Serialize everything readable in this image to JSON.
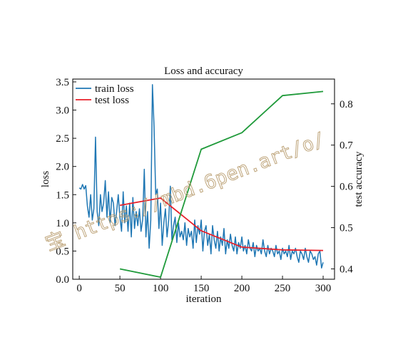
{
  "watermark": "宝 https://mbd.6pen.art/o/",
  "chart_data": {
    "type": "line",
    "title": "Loss and accuracy",
    "xlabel": "iteration",
    "ylabel": "loss",
    "y2label": "test accuracy",
    "xlim": [
      -8,
      314
    ],
    "ylim": [
      0.0,
      3.55
    ],
    "y2lim": [
      0.375,
      0.86
    ],
    "xticks": [
      0,
      50,
      100,
      150,
      200,
      250,
      300
    ],
    "yticks": [
      0.0,
      0.5,
      1.0,
      1.5,
      2.0,
      2.5,
      3.0,
      3.5
    ],
    "yticklabels": [
      "0.0",
      "0.5",
      "1.0",
      "1.5",
      "2.0",
      "2.5",
      "3.0",
      "3.5"
    ],
    "y2ticks": [
      0.4,
      0.5,
      0.6,
      0.7,
      0.8
    ],
    "y2ticklabels": [
      "0.4",
      "0.5",
      "0.6",
      "0.7",
      "0.8"
    ],
    "grid": false,
    "legend": "top-left",
    "colors": {
      "train": "#1f77b4",
      "test": "#e8202a",
      "accuracy": "#1f9a3a"
    },
    "series": [
      {
        "name": "train loss",
        "axis": "left",
        "x": [
          0,
          2,
          4,
          6,
          8,
          10,
          12,
          14,
          16,
          18,
          20,
          22,
          24,
          26,
          28,
          30,
          32,
          34,
          36,
          38,
          40,
          42,
          44,
          46,
          48,
          50,
          52,
          54,
          56,
          58,
          60,
          62,
          64,
          66,
          68,
          70,
          72,
          74,
          76,
          78,
          80,
          82,
          84,
          86,
          88,
          90,
          92,
          94,
          96,
          98,
          100,
          102,
          104,
          106,
          108,
          110,
          112,
          114,
          116,
          118,
          120,
          122,
          124,
          126,
          128,
          130,
          132,
          134,
          136,
          138,
          140,
          142,
          144,
          146,
          148,
          150,
          152,
          154,
          156,
          158,
          160,
          162,
          164,
          166,
          168,
          170,
          172,
          174,
          176,
          178,
          180,
          182,
          184,
          186,
          188,
          190,
          192,
          194,
          196,
          198,
          200,
          202,
          204,
          206,
          208,
          210,
          212,
          214,
          216,
          218,
          220,
          222,
          224,
          226,
          228,
          230,
          232,
          234,
          236,
          238,
          240,
          242,
          244,
          246,
          248,
          250,
          252,
          254,
          256,
          258,
          260,
          262,
          264,
          266,
          268,
          270,
          272,
          274,
          276,
          278,
          280,
          282,
          284,
          286,
          288,
          290,
          292,
          294,
          296,
          298,
          300
        ],
        "values": [
          1.62,
          1.6,
          1.68,
          1.6,
          1.66,
          1.3,
          1.1,
          1.5,
          1.05,
          1.25,
          2.52,
          1.2,
          0.95,
          1.5,
          1.2,
          1.35,
          1.75,
          1.1,
          1.55,
          1.0,
          1.45,
          1.35,
          0.95,
          1.2,
          1.5,
          1.1,
          0.85,
          1.55,
          1.0,
          1.3,
          0.85,
          1.35,
          0.75,
          1.45,
          0.9,
          1.2,
          0.95,
          1.25,
          0.85,
          1.05,
          1.95,
          0.75,
          1.2,
          0.55,
          1.05,
          3.45,
          2.7,
          1.5,
          1.6,
          0.9,
          1.35,
          0.6,
          1.0,
          1.25,
          0.75,
          1.05,
          1.65,
          0.7,
          0.95,
          1.1,
          0.65,
          1.0,
          0.75,
          0.85,
          0.7,
          1.0,
          0.6,
          0.9,
          0.75,
          0.85,
          0.55,
          1.05,
          0.65,
          0.95,
          0.8,
          1.05,
          0.5,
          0.85,
          0.95,
          0.6,
          0.8,
          0.45,
          0.95,
          0.7,
          0.55,
          0.85,
          0.5,
          0.75,
          0.6,
          0.9,
          0.45,
          0.7,
          0.55,
          0.8,
          0.6,
          0.5,
          0.75,
          0.45,
          0.65,
          0.55,
          0.75,
          0.5,
          0.6,
          0.45,
          0.7,
          0.55,
          0.5,
          0.65,
          0.4,
          0.6,
          0.5,
          0.55,
          0.45,
          0.7,
          0.5,
          0.4,
          0.6,
          0.45,
          0.55,
          0.5,
          0.4,
          0.6,
          0.45,
          0.5,
          0.35,
          0.55,
          0.45,
          0.5,
          0.4,
          0.6,
          0.35,
          0.5,
          0.45,
          0.55,
          0.4,
          0.3,
          0.5,
          0.45,
          0.35,
          0.55,
          0.4,
          0.3,
          0.5,
          0.45,
          0.35,
          0.4,
          0.25,
          0.45,
          0.5,
          0.2,
          0.3
        ]
      },
      {
        "name": "test loss",
        "axis": "left",
        "x": [
          50,
          100,
          150,
          200,
          250,
          300
        ],
        "values": [
          1.31,
          1.44,
          0.86,
          0.57,
          0.52,
          0.51
        ]
      },
      {
        "name": "",
        "axis": "right",
        "x": [
          50,
          100,
          150,
          200,
          250,
          300
        ],
        "values": [
          0.4,
          0.38,
          0.69,
          0.73,
          0.82,
          0.83
        ]
      }
    ]
  }
}
